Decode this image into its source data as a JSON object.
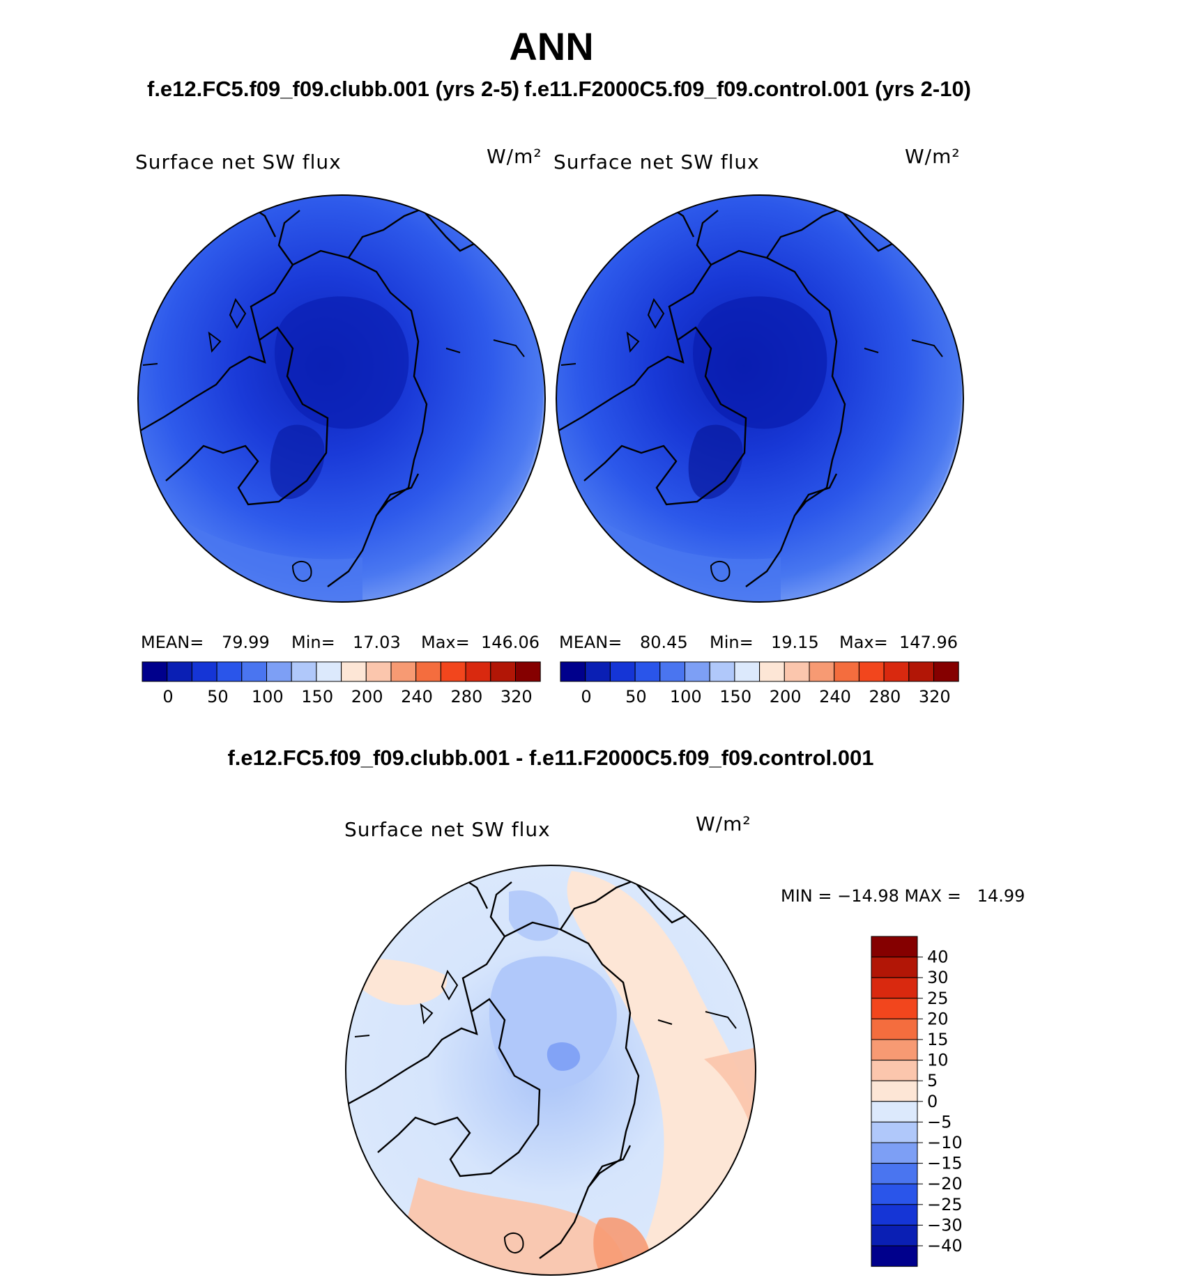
{
  "figure": {
    "title": "ANN",
    "case1_title": "f.e12.FC5.f09_f09.clubb.001 (yrs 2-5)",
    "case2_title": "f.e11.F2000C5.f09_f09.control.001 (yrs 2-10)",
    "diff_title": "f.e12.FC5.f09_f09.clubb.001 - f.e11.F2000C5.f09_f09.control.001"
  },
  "chart_data": [
    {
      "type": "polar-stereographic-contour-map",
      "region": "Northern hemisphere (north polar)",
      "variable": "Surface net SW flux",
      "units": "W/m²",
      "case": "f.e12.FC5.f09_f09.clubb.001 (yrs 2-5)",
      "stats": {
        "mean": "79.99",
        "min": "17.03",
        "max": "146.06"
      },
      "stats_labels": {
        "mean": "MEAN=",
        "min": "Min=",
        "max": "Max="
      },
      "contour_levels": [
        0,
        25,
        50,
        75,
        100,
        125,
        150,
        175,
        200,
        220,
        240,
        260,
        280,
        300,
        320
      ],
      "colorbar_tick_labels": [
        "0",
        "50",
        "100",
        "150",
        "200",
        "240",
        "280",
        "320"
      ],
      "colorbar_colors": [
        "#00008c",
        "#0a1fb4",
        "#1535d6",
        "#2a55ea",
        "#4a75f0",
        "#7d9ff5",
        "#b0c8fa",
        "#dce9fc",
        "#fde6d6",
        "#fbc6ad",
        "#f79a73",
        "#f46d3e",
        "#f2461d",
        "#d9290f",
        "#b21606",
        "#850000"
      ]
    },
    {
      "type": "polar-stereographic-contour-map",
      "region": "Northern hemisphere (north polar)",
      "variable": "Surface net SW flux",
      "units": "W/m²",
      "case": "f.e11.F2000C5.f09_f09.control.001 (yrs 2-10)",
      "stats": {
        "mean": "80.45",
        "min": "19.15",
        "max": "147.96"
      },
      "stats_labels": {
        "mean": "MEAN=",
        "min": "Min=",
        "max": "Max="
      },
      "contour_levels": [
        0,
        25,
        50,
        75,
        100,
        125,
        150,
        175,
        200,
        220,
        240,
        260,
        280,
        300,
        320
      ],
      "colorbar_tick_labels": [
        "0",
        "50",
        "100",
        "150",
        "200",
        "240",
        "280",
        "320"
      ],
      "colorbar_colors": [
        "#00008c",
        "#0a1fb4",
        "#1535d6",
        "#2a55ea",
        "#4a75f0",
        "#7d9ff5",
        "#b0c8fa",
        "#dce9fc",
        "#fde6d6",
        "#fbc6ad",
        "#f79a73",
        "#f46d3e",
        "#f2461d",
        "#d9290f",
        "#b21606",
        "#850000"
      ]
    },
    {
      "type": "polar-stereographic-contour-map",
      "region": "Northern hemisphere (north polar)",
      "variable": "Surface net SW flux",
      "units": "W/m²",
      "case": "f.e12.FC5.f09_f09.clubb.001 - f.e11.F2000C5.f09_f09.control.001",
      "stats_text": "MIN = −14.98 MAX =   14.99",
      "stats": {
        "min": -14.98,
        "max": 14.99
      },
      "contour_levels": [
        -40,
        -30,
        -25,
        -20,
        -15,
        -10,
        -5,
        0,
        5,
        10,
        15,
        20,
        25,
        30,
        40
      ],
      "colorbar_tick_labels": [
        "40",
        "30",
        "25",
        "20",
        "15",
        "10",
        "5",
        "0",
        "−5",
        "−10",
        "−15",
        "−20",
        "−25",
        "−30",
        "−40"
      ],
      "colorbar_colors_top_to_bottom": [
        "#850000",
        "#b21606",
        "#d9290f",
        "#f2461d",
        "#f46d3e",
        "#f79a73",
        "#fbc6ad",
        "#fde6d6",
        "#dce9fc",
        "#b0c8fa",
        "#7d9ff5",
        "#4a75f0",
        "#2a55ea",
        "#1535d6",
        "#0a1fb4",
        "#00008c"
      ]
    }
  ]
}
